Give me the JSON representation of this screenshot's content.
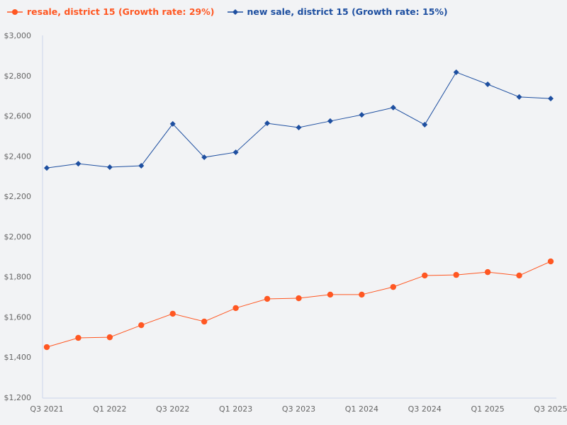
{
  "chart_data": {
    "type": "line",
    "categories": [
      "Q3 2021",
      "Q4 2021",
      "Q1 2022",
      "Q2 2022",
      "Q3 2022",
      "Q4 2022",
      "Q1 2023",
      "Q2 2023",
      "Q3 2023",
      "Q4 2023",
      "Q1 2024",
      "Q2 2024",
      "Q3 2024",
      "Q4 2024",
      "Q1 2025",
      "Q2 2025",
      "Q3 2025"
    ],
    "x_tick_labels": [
      "Q3 2021",
      "Q1 2022",
      "Q3 2022",
      "Q1 2023",
      "Q3 2023",
      "Q1 2024",
      "Q3 2024",
      "Q1 2025",
      "Q3 2025"
    ],
    "y_tick_labels": [
      "$1,200",
      "$1,400",
      "$1,600",
      "$1,800",
      "$2,000",
      "$2,200",
      "$2,400",
      "$2,600",
      "$2,800",
      "$3,000"
    ],
    "ylim": [
      1200,
      3000
    ],
    "grid": false,
    "legend_position": "top-left",
    "series": [
      {
        "name": "resale, district 15 (Growth rate: 29%)",
        "color": "#ff5722",
        "marker": "circle",
        "values": [
          1450,
          1496,
          1499,
          1559,
          1616,
          1577,
          1644,
          1690,
          1693,
          1711,
          1711,
          1749,
          1806,
          1809,
          1823,
          1806,
          1876
        ]
      },
      {
        "name": "new sale, district 15 (Growth rate: 15%)",
        "color": "#1e4fa0",
        "marker": "diamond",
        "values": [
          2341,
          2362,
          2345,
          2352,
          2560,
          2394,
          2419,
          2563,
          2542,
          2574,
          2605,
          2641,
          2556,
          2817,
          2757,
          2694,
          2686
        ]
      }
    ]
  }
}
